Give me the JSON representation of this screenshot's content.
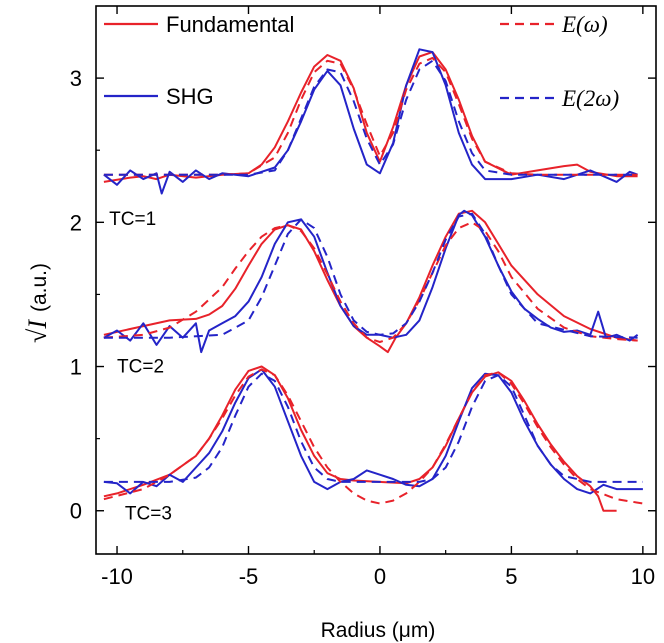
{
  "chart_data": {
    "type": "line",
    "title": "",
    "xlabel": "Radius (μm)",
    "ylabel": "(a.u.)",
    "ylabel_symbol": "√I",
    "xlim": [
      -10.8,
      10.5
    ],
    "ylim": [
      -0.3,
      3.5
    ],
    "xticks": [
      -10,
      -5,
      0,
      5,
      10
    ],
    "yticks": [
      0,
      1,
      2,
      3
    ],
    "grid": false,
    "legend_position": "top",
    "legend": [
      {
        "label": "Fundamental",
        "color": "#e8222a",
        "dash": "solid"
      },
      {
        "label": "SHG",
        "color": "#2424c8",
        "dash": "solid"
      },
      {
        "label": "E(ω)",
        "color": "#e8222a",
        "dash": "dashed"
      },
      {
        "label": "E(2ω)",
        "color": "#2424c8",
        "dash": "dashed"
      }
    ],
    "annotations": [
      {
        "text": "TC=1",
        "x": -10.3,
        "y": 1.98
      },
      {
        "text": "TC=2",
        "x": -10.0,
        "y": 0.96
      },
      {
        "text": "TC=3",
        "x": -9.7,
        "y": -0.06
      }
    ],
    "series": [
      {
        "name": "Fundamental",
        "group": "TC=1",
        "color": "#e8222a",
        "dash": "solid",
        "x": [
          -10.5,
          -9.5,
          -9,
          -8.5,
          -8,
          -7,
          -6,
          -5,
          -4.5,
          -4,
          -3.5,
          -3,
          -2.5,
          -2,
          -1.5,
          -1,
          -0.5,
          0,
          0.5,
          1,
          1.5,
          2,
          2.5,
          3,
          3.5,
          4,
          5,
          6,
          7,
          7.5,
          8,
          9,
          9.8
        ],
        "y": [
          2.28,
          2.31,
          2.32,
          2.3,
          2.33,
          2.31,
          2.33,
          2.34,
          2.4,
          2.52,
          2.7,
          2.9,
          3.08,
          3.16,
          3.12,
          2.93,
          2.62,
          2.42,
          2.66,
          2.95,
          3.15,
          3.18,
          3.06,
          2.85,
          2.6,
          2.42,
          2.33,
          2.36,
          2.39,
          2.4,
          2.35,
          2.32,
          2.32
        ]
      },
      {
        "name": "SHG",
        "group": "TC=1",
        "color": "#2424c8",
        "dash": "solid",
        "x": [
          -10.5,
          -10,
          -9.5,
          -9,
          -8.5,
          -8.3,
          -8,
          -7.5,
          -7,
          -6.5,
          -6,
          -5.5,
          -5,
          -4.5,
          -4,
          -3.5,
          -3,
          -2.5,
          -2,
          -1.5,
          -1,
          -0.5,
          0,
          0.5,
          1,
          1.5,
          2,
          2.5,
          3,
          3.5,
          4,
          5,
          6,
          7,
          8,
          9,
          9.5,
          9.8
        ],
        "y": [
          2.33,
          2.26,
          2.36,
          2.3,
          2.34,
          2.2,
          2.35,
          2.28,
          2.36,
          2.3,
          2.34,
          2.33,
          2.32,
          2.35,
          2.38,
          2.5,
          2.7,
          2.92,
          3.05,
          2.95,
          2.65,
          2.4,
          2.34,
          2.55,
          2.95,
          3.2,
          3.18,
          2.95,
          2.62,
          2.4,
          2.3,
          2.3,
          2.33,
          2.3,
          2.36,
          2.28,
          2.35,
          2.33
        ]
      },
      {
        "name": "E(ω)",
        "group": "TC=1",
        "color": "#e8222a",
        "dash": "dashed",
        "x": [
          -10.5,
          -8,
          -6,
          -5,
          -4,
          -3.5,
          -3,
          -2.5,
          -2,
          -1.5,
          -1,
          -0.5,
          0,
          0.5,
          1,
          1.5,
          2,
          2.5,
          3,
          3.5,
          4,
          5,
          6,
          8,
          9.8
        ],
        "y": [
          2.33,
          2.33,
          2.33,
          2.34,
          2.45,
          2.62,
          2.85,
          3.04,
          3.12,
          3.1,
          2.92,
          2.68,
          2.46,
          2.62,
          2.92,
          3.1,
          3.14,
          3.04,
          2.82,
          2.58,
          2.42,
          2.34,
          2.33,
          2.33,
          2.33
        ]
      },
      {
        "name": "E(2ω)",
        "group": "TC=1",
        "color": "#2424c8",
        "dash": "dashed",
        "x": [
          -10.5,
          -8,
          -6,
          -5,
          -4,
          -3.5,
          -3,
          -2.5,
          -2,
          -1.5,
          -1,
          -0.5,
          0,
          0.5,
          1,
          1.5,
          2,
          2.5,
          3,
          3.5,
          4,
          5,
          6,
          8,
          9.8
        ],
        "y": [
          2.33,
          2.33,
          2.33,
          2.33,
          2.36,
          2.5,
          2.72,
          2.94,
          3.06,
          3.04,
          2.84,
          2.58,
          2.4,
          2.54,
          2.85,
          3.06,
          3.12,
          2.98,
          2.7,
          2.48,
          2.36,
          2.33,
          2.33,
          2.33,
          2.33
        ]
      },
      {
        "name": "Fundamental",
        "group": "TC=2",
        "color": "#e8222a",
        "dash": "solid",
        "x": [
          -10.5,
          -9,
          -8,
          -7,
          -6.5,
          -6,
          -5.5,
          -5,
          -4.5,
          -4,
          -3.5,
          -3,
          -2.5,
          -2,
          -1.5,
          -1,
          -0.5,
          0,
          0.3,
          0.6,
          1,
          1.5,
          2,
          2.5,
          3,
          3.5,
          4,
          4.5,
          5,
          6,
          7,
          8,
          9,
          9.8
        ],
        "y": [
          1.22,
          1.28,
          1.32,
          1.33,
          1.36,
          1.42,
          1.54,
          1.7,
          1.85,
          1.95,
          1.98,
          1.95,
          1.8,
          1.6,
          1.42,
          1.28,
          1.2,
          1.14,
          1.1,
          1.2,
          1.3,
          1.48,
          1.7,
          1.9,
          2.06,
          2.08,
          2.0,
          1.85,
          1.7,
          1.5,
          1.35,
          1.26,
          1.2,
          1.18
        ]
      },
      {
        "name": "SHG",
        "group": "TC=2",
        "color": "#2424c8",
        "dash": "solid",
        "x": [
          -10.5,
          -10,
          -9.5,
          -9,
          -8.5,
          -8,
          -7.5,
          -7,
          -6.8,
          -6.5,
          -6,
          -5.5,
          -5,
          -4.5,
          -4,
          -3.5,
          -3,
          -2.5,
          -2,
          -1.5,
          -1,
          -0.5,
          0,
          0.5,
          1,
          1.5,
          2,
          2.5,
          3,
          3.2,
          3.5,
          4,
          4.5,
          5,
          5.5,
          6,
          6.5,
          7,
          7.5,
          8,
          8.3,
          8.6,
          9,
          9.5,
          9.8
        ],
        "y": [
          1.2,
          1.25,
          1.18,
          1.3,
          1.15,
          1.28,
          1.2,
          1.3,
          1.1,
          1.25,
          1.3,
          1.35,
          1.45,
          1.62,
          1.85,
          2.0,
          2.02,
          1.9,
          1.65,
          1.42,
          1.28,
          1.22,
          1.22,
          1.2,
          1.22,
          1.32,
          1.55,
          1.82,
          2.05,
          2.08,
          2.05,
          1.9,
          1.7,
          1.52,
          1.4,
          1.33,
          1.27,
          1.24,
          1.25,
          1.22,
          1.38,
          1.2,
          1.22,
          1.18,
          1.22
        ]
      },
      {
        "name": "E(ω)",
        "group": "TC=2",
        "color": "#e8222a",
        "dash": "dashed",
        "x": [
          -10.5,
          -9,
          -8,
          -7,
          -6,
          -5.5,
          -5,
          -4.5,
          -4,
          -3.5,
          -3,
          -2.5,
          -2,
          -1.5,
          -1,
          -0.5,
          0,
          0.5,
          1,
          1.5,
          2,
          2.5,
          3,
          3.5,
          4,
          4.5,
          5,
          6,
          7,
          8,
          9,
          9.8
        ],
        "y": [
          1.2,
          1.22,
          1.27,
          1.38,
          1.55,
          1.68,
          1.8,
          1.9,
          1.96,
          1.98,
          1.94,
          1.82,
          1.64,
          1.45,
          1.3,
          1.2,
          1.17,
          1.2,
          1.3,
          1.46,
          1.65,
          1.84,
          1.96,
          2.0,
          1.94,
          1.8,
          1.62,
          1.4,
          1.27,
          1.21,
          1.19,
          1.18
        ]
      },
      {
        "name": "E(2ω)",
        "group": "TC=2",
        "color": "#2424c8",
        "dash": "dashed",
        "x": [
          -10.5,
          -8,
          -6,
          -5,
          -4.5,
          -4,
          -3.5,
          -3,
          -2.5,
          -2,
          -1.5,
          -1,
          -0.5,
          0,
          0.5,
          1,
          1.5,
          2,
          2.5,
          3,
          3.5,
          4,
          4.5,
          5,
          6,
          8,
          9.8
        ],
        "y": [
          1.2,
          1.2,
          1.22,
          1.32,
          1.48,
          1.7,
          1.92,
          2.02,
          1.96,
          1.76,
          1.5,
          1.32,
          1.24,
          1.22,
          1.23,
          1.3,
          1.45,
          1.65,
          1.88,
          2.04,
          2.06,
          1.92,
          1.7,
          1.5,
          1.3,
          1.21,
          1.2
        ]
      },
      {
        "name": "Fundamental",
        "group": "TC=3",
        "color": "#e8222a",
        "dash": "solid",
        "x": [
          -10.5,
          -10,
          -9,
          -8,
          -7,
          -6.5,
          -6,
          -5.5,
          -5,
          -4.5,
          -4,
          -3.5,
          -3,
          -2.5,
          -2,
          -1.5,
          -1,
          0,
          1,
          1.5,
          2,
          2.5,
          3,
          3.5,
          4,
          4.5,
          5,
          5.5,
          6,
          6.5,
          7,
          7.5,
          8,
          8.3,
          8.5,
          9
        ],
        "y": [
          0.1,
          0.12,
          0.18,
          0.25,
          0.38,
          0.5,
          0.66,
          0.84,
          0.97,
          1.0,
          0.94,
          0.78,
          0.56,
          0.38,
          0.26,
          0.22,
          0.21,
          0.2,
          0.19,
          0.22,
          0.3,
          0.45,
          0.64,
          0.82,
          0.93,
          0.96,
          0.9,
          0.76,
          0.6,
          0.46,
          0.34,
          0.24,
          0.17,
          0.1,
          0.0,
          0.0
        ]
      },
      {
        "name": "SHG",
        "group": "TC=3",
        "color": "#2424c8",
        "dash": "solid",
        "x": [
          -10.5,
          -10,
          -9.5,
          -9,
          -8.5,
          -8,
          -7.5,
          -7,
          -6.5,
          -6,
          -5.5,
          -5,
          -4.5,
          -4,
          -3.5,
          -3,
          -2.5,
          -2,
          -1.5,
          -1,
          -0.5,
          0,
          0.5,
          1,
          1.5,
          2,
          2.5,
          3,
          3.5,
          4,
          4.5,
          5,
          5.5,
          6,
          6.5,
          7,
          7.5,
          8,
          8.5,
          9,
          10
        ],
        "y": [
          0.2,
          0.19,
          0.12,
          0.2,
          0.17,
          0.25,
          0.2,
          0.3,
          0.4,
          0.55,
          0.75,
          0.92,
          0.98,
          0.86,
          0.62,
          0.38,
          0.2,
          0.15,
          0.2,
          0.22,
          0.28,
          0.25,
          0.22,
          0.18,
          0.17,
          0.22,
          0.38,
          0.62,
          0.85,
          0.95,
          0.94,
          0.82,
          0.62,
          0.45,
          0.32,
          0.22,
          0.15,
          0.12,
          0.18,
          0.15,
          0.15
        ]
      },
      {
        "name": "E(ω)",
        "group": "TC=3",
        "color": "#e8222a",
        "dash": "dashed",
        "x": [
          -10.5,
          -9,
          -8,
          -7,
          -6.5,
          -6,
          -5.5,
          -5,
          -4.5,
          -4,
          -3.5,
          -3,
          -2.5,
          -2,
          -1.5,
          -1,
          -0.5,
          0,
          0.5,
          1,
          1.5,
          2,
          2.5,
          3,
          3.5,
          4,
          4.5,
          5,
          5.5,
          6,
          6.5,
          7,
          7.5,
          8,
          9,
          10
        ],
        "y": [
          0.08,
          0.15,
          0.25,
          0.38,
          0.5,
          0.64,
          0.8,
          0.93,
          0.98,
          0.94,
          0.8,
          0.62,
          0.44,
          0.3,
          0.2,
          0.12,
          0.07,
          0.05,
          0.07,
          0.12,
          0.2,
          0.3,
          0.46,
          0.64,
          0.82,
          0.94,
          0.96,
          0.88,
          0.74,
          0.58,
          0.44,
          0.32,
          0.22,
          0.15,
          0.08,
          0.05
        ]
      },
      {
        "name": "E(2ω)",
        "group": "TC=3",
        "color": "#2424c8",
        "dash": "dashed",
        "x": [
          -10.5,
          -8,
          -7,
          -6.5,
          -6,
          -5.5,
          -5,
          -4.5,
          -4,
          -3.5,
          -3,
          -2.5,
          -2,
          -1.5,
          -1,
          -0.5,
          0,
          0.5,
          1,
          1.5,
          2,
          2.5,
          3,
          3.5,
          4,
          4.5,
          5,
          5.5,
          6,
          6.5,
          7,
          8,
          9,
          10
        ],
        "y": [
          0.2,
          0.2,
          0.23,
          0.3,
          0.44,
          0.66,
          0.86,
          0.95,
          0.9,
          0.72,
          0.48,
          0.3,
          0.22,
          0.2,
          0.2,
          0.2,
          0.2,
          0.2,
          0.2,
          0.2,
          0.22,
          0.3,
          0.48,
          0.72,
          0.9,
          0.94,
          0.86,
          0.66,
          0.45,
          0.32,
          0.24,
          0.2,
          0.2,
          0.2
        ]
      }
    ]
  }
}
